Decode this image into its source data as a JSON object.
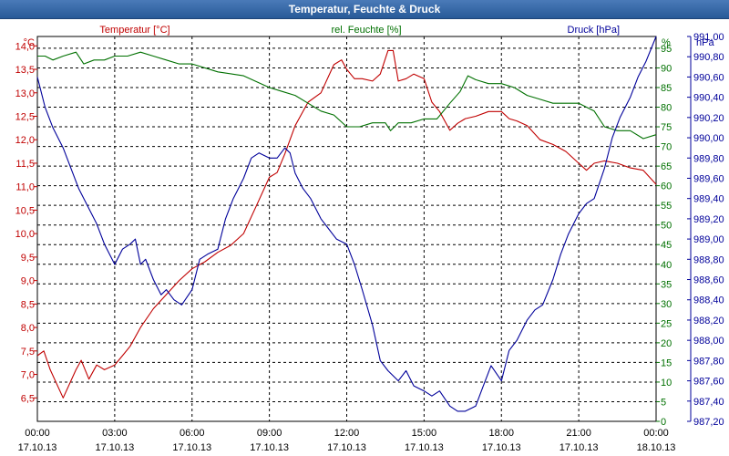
{
  "window": {
    "title": "Temperatur, Feuchte & Druck"
  },
  "colors": {
    "temperature": "#c00000",
    "humidity": "#007000",
    "pressure": "#00009a",
    "grid": "#000000",
    "titlebar": "#3a6aa8"
  },
  "chart_data": {
    "type": "line",
    "title": "Temperatur, Feuchte & Druck",
    "grid": true,
    "x_ticks": [
      {
        "hour": 0,
        "time": "00:00",
        "date": "17.10.13"
      },
      {
        "hour": 3,
        "time": "03:00",
        "date": "17.10.13"
      },
      {
        "hour": 6,
        "time": "06:00",
        "date": "17.10.13"
      },
      {
        "hour": 9,
        "time": "09:00",
        "date": "17.10.13"
      },
      {
        "hour": 12,
        "time": "12:00",
        "date": "17.10.13"
      },
      {
        "hour": 15,
        "time": "15:00",
        "date": "17.10.13"
      },
      {
        "hour": 18,
        "time": "18:00",
        "date": "17.10.13"
      },
      {
        "hour": 21,
        "time": "21:00",
        "date": "17.10.13"
      },
      {
        "hour": 24,
        "time": "00:00",
        "date": "18.10.13"
      }
    ],
    "axes": {
      "temperature": {
        "unit": "°C",
        "label": "Temperatur [°C]",
        "ylim": [
          6.0,
          14.2
        ],
        "ticks": [
          "6,5",
          "7,0",
          "7,5",
          "8,0",
          "8,5",
          "9,0",
          "9,5",
          "10,0",
          "10,5",
          "11,0",
          "11,5",
          "12,0",
          "12,5",
          "13,0",
          "13,5",
          "14,0"
        ],
        "tick_values": [
          6.5,
          7.0,
          7.5,
          8.0,
          8.5,
          9.0,
          9.5,
          10.0,
          10.5,
          11.0,
          11.5,
          12.0,
          12.5,
          13.0,
          13.5,
          14.0
        ]
      },
      "humidity": {
        "unit": "%",
        "label": "rel. Feuchte [%]",
        "ylim": [
          0,
          98
        ],
        "ticks": [
          "0",
          "5",
          "10",
          "15",
          "20",
          "25",
          "30",
          "35",
          "40",
          "45",
          "50",
          "55",
          "60",
          "65",
          "70",
          "75",
          "80",
          "85",
          "90",
          "95"
        ],
        "tick_values": [
          0,
          5,
          10,
          15,
          20,
          25,
          30,
          35,
          40,
          45,
          50,
          55,
          60,
          65,
          70,
          75,
          80,
          85,
          90,
          95
        ]
      },
      "pressure": {
        "unit": "hPa",
        "label": "Druck [hPa]",
        "ylim": [
          987.2,
          991.0
        ],
        "ticks": [
          "987,20",
          "987,40",
          "987,60",
          "987,80",
          "988,00",
          "988,20",
          "988,40",
          "988,60",
          "988,80",
          "989,00",
          "989,20",
          "989,40",
          "989,60",
          "989,80",
          "990,00",
          "990,20",
          "990,40",
          "990,60",
          "990,80",
          "991,00"
        ],
        "tick_values": [
          987.2,
          987.4,
          987.6,
          987.8,
          988.0,
          988.2,
          988.4,
          988.6,
          988.8,
          989.0,
          989.2,
          989.4,
          989.6,
          989.8,
          990.0,
          990.2,
          990.4,
          990.6,
          990.8,
          991.0
        ]
      }
    },
    "series": [
      {
        "name": "Temperatur [°C]",
        "axis": "temperature",
        "color": "#c00000",
        "x": [
          0,
          0.25,
          0.5,
          1,
          1.5,
          1.7,
          2,
          2.3,
          2.6,
          3,
          3.3,
          3.6,
          4,
          4.5,
          5,
          5.5,
          6,
          6.5,
          7,
          7.5,
          8,
          8.5,
          9,
          9.3,
          9.6,
          10,
          10.5,
          11,
          11.5,
          11.8,
          12,
          12.3,
          12.6,
          13,
          13.3,
          13.6,
          13.8,
          14,
          14.3,
          14.6,
          15,
          15.3,
          15.6,
          16,
          16.3,
          16.6,
          17,
          17.5,
          18,
          18.3,
          18.6,
          19,
          19.5,
          20,
          20.5,
          21,
          21.3,
          21.6,
          22,
          22.5,
          23,
          23.5,
          24
        ],
        "y": [
          7.4,
          7.5,
          7.1,
          6.5,
          7.1,
          7.3,
          6.9,
          7.2,
          7.1,
          7.2,
          7.4,
          7.6,
          8.0,
          8.4,
          8.7,
          9.0,
          9.25,
          9.4,
          9.6,
          9.75,
          10.0,
          10.6,
          11.2,
          11.3,
          11.7,
          12.3,
          12.8,
          13.0,
          13.6,
          13.7,
          13.5,
          13.3,
          13.3,
          13.25,
          13.4,
          13.9,
          13.9,
          13.25,
          13.3,
          13.4,
          13.3,
          12.8,
          12.6,
          12.2,
          12.35,
          12.45,
          12.5,
          12.6,
          12.6,
          12.45,
          12.4,
          12.3,
          12.0,
          11.9,
          11.75,
          11.5,
          11.35,
          11.5,
          11.55,
          11.5,
          11.4,
          11.35,
          11.05
        ]
      },
      {
        "name": "rel. Feuchte [%]",
        "axis": "humidity",
        "color": "#007000",
        "x": [
          0,
          0.3,
          0.6,
          1,
          1.5,
          1.8,
          2.2,
          2.6,
          3,
          3.5,
          4,
          4.5,
          5,
          5.5,
          6,
          7,
          8,
          9,
          9.5,
          10,
          10.5,
          11,
          11.5,
          12,
          12.5,
          13,
          13.5,
          13.7,
          14,
          14.5,
          15,
          15.5,
          16,
          16.4,
          16.7,
          17,
          17.5,
          18,
          18.5,
          19,
          19.5,
          20,
          20.5,
          21,
          21.3,
          21.6,
          22,
          22.5,
          23,
          23.5,
          24
        ],
        "y": [
          93,
          93,
          92,
          93,
          94,
          91,
          92,
          92,
          93,
          93,
          94,
          93,
          92,
          91,
          91,
          89,
          88,
          85,
          84,
          83,
          81,
          79,
          78,
          75,
          75,
          76,
          76,
          74,
          76,
          76,
          77,
          77,
          81,
          84,
          88,
          87,
          86,
          86,
          85,
          83,
          82,
          81,
          81,
          81,
          80,
          79,
          75,
          74,
          74,
          72,
          73
        ]
      },
      {
        "name": "Druck [hPa]",
        "axis": "pressure",
        "color": "#00009a",
        "x": [
          0,
          0.3,
          0.6,
          1,
          1.3,
          1.6,
          2,
          2.3,
          2.6,
          3,
          3.3,
          3.6,
          3.8,
          4,
          4.2,
          4.5,
          4.8,
          5,
          5.3,
          5.6,
          6,
          6.3,
          6.6,
          7,
          7.3,
          7.6,
          7.8,
          8,
          8.3,
          8.6,
          9,
          9.3,
          9.6,
          9.8,
          10,
          10.3,
          10.6,
          11,
          11.3,
          11.6,
          12,
          12.3,
          12.6,
          13,
          13.3,
          13.6,
          14,
          14.3,
          14.6,
          15,
          15.3,
          15.6,
          16,
          16.3,
          16.6,
          17,
          17.3,
          17.6,
          18,
          18.3,
          18.6,
          19,
          19.3,
          19.6,
          20,
          20.3,
          20.6,
          21,
          21.3,
          21.6,
          22,
          22.3,
          22.6,
          23,
          23.3,
          23.6,
          24
        ],
        "y": [
          990.6,
          990.3,
          990.1,
          989.9,
          989.7,
          989.5,
          989.3,
          989.15,
          988.95,
          988.75,
          988.9,
          988.95,
          989.0,
          988.75,
          988.8,
          988.6,
          988.45,
          988.5,
          988.4,
          988.35,
          988.5,
          988.8,
          988.85,
          988.9,
          989.2,
          989.4,
          989.5,
          989.6,
          989.8,
          989.85,
          989.8,
          989.8,
          989.9,
          989.85,
          989.65,
          989.5,
          989.4,
          989.2,
          989.1,
          989.0,
          988.95,
          988.75,
          988.5,
          988.15,
          987.8,
          987.7,
          987.6,
          987.7,
          987.55,
          987.5,
          987.45,
          987.5,
          987.35,
          987.3,
          987.3,
          987.35,
          987.55,
          987.75,
          987.6,
          987.9,
          988.0,
          988.2,
          988.3,
          988.35,
          988.6,
          988.85,
          989.05,
          989.25,
          989.35,
          989.4,
          989.7,
          990.0,
          990.2,
          990.4,
          990.6,
          990.75,
          991.0
        ]
      }
    ]
  }
}
